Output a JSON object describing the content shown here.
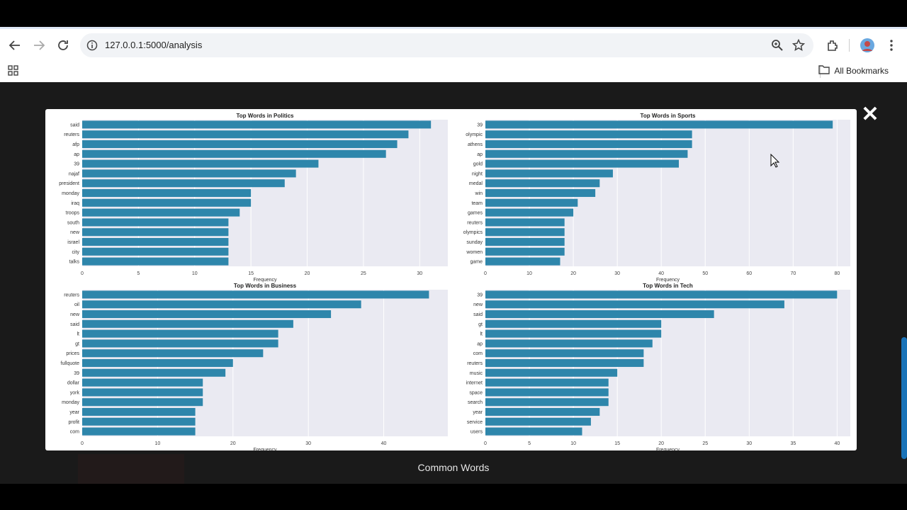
{
  "browser": {
    "url": "127.0.0.1:5000/analysis",
    "bookmarks_label": "All Bookmarks",
    "icons": [
      "back-arrow-icon",
      "forward-arrow-icon",
      "reload-icon",
      "site-info-icon",
      "zoom-icon",
      "star-icon",
      "extensions-icon",
      "avatar",
      "menu-dots-icon",
      "apps-grid-icon",
      "folder-icon"
    ]
  },
  "modal": {
    "close_label": "✕",
    "caption": "Common Words"
  },
  "chart_data": [
    {
      "type": "bar",
      "orientation": "horizontal",
      "title": "Top Words in Politics",
      "xlabel": "Frequency",
      "categories": [
        "said",
        "reuters",
        "afp",
        "ap",
        "39",
        "najaf",
        "president",
        "monday",
        "iraq",
        "troops",
        "south",
        "new",
        "israel",
        "city",
        "talks"
      ],
      "values": [
        31,
        29,
        28,
        27,
        21,
        19,
        18,
        15,
        15,
        14,
        13,
        13,
        13,
        13,
        13
      ],
      "xticks": [
        0,
        5,
        10,
        15,
        20,
        25,
        30
      ],
      "xlim": [
        0,
        32.5
      ],
      "color": "#2e86ab"
    },
    {
      "type": "bar",
      "orientation": "horizontal",
      "title": "Top Words in Sports",
      "xlabel": "Frequency",
      "categories": [
        "39",
        "olympic",
        "athens",
        "ap",
        "gold",
        "night",
        "medal",
        "win",
        "team",
        "games",
        "reuters",
        "olympics",
        "sunday",
        "women",
        "game"
      ],
      "values": [
        79,
        47,
        47,
        46,
        44,
        29,
        26,
        25,
        21,
        20,
        18,
        18,
        18,
        18,
        17
      ],
      "xticks": [
        0,
        10,
        20,
        30,
        40,
        50,
        60,
        70,
        80
      ],
      "xlim": [
        0,
        83
      ],
      "color": "#2e86ab"
    },
    {
      "type": "bar",
      "orientation": "horizontal",
      "title": "Top Words in Business",
      "xlabel": "Frequency",
      "categories": [
        "reuters",
        "oil",
        "new",
        "said",
        "lt",
        "gt",
        "prices",
        "fullquote",
        "39",
        "dollar",
        "york",
        "monday",
        "year",
        "profit",
        "com"
      ],
      "values": [
        46,
        37,
        33,
        28,
        26,
        26,
        24,
        20,
        19,
        16,
        16,
        16,
        15,
        15,
        15
      ],
      "xticks": [
        0,
        10,
        20,
        30,
        40
      ],
      "xlim": [
        0,
        48.5
      ],
      "color": "#2e86ab"
    },
    {
      "type": "bar",
      "orientation": "horizontal",
      "title": "Top Words in Tech",
      "xlabel": "Frequency",
      "categories": [
        "39",
        "new",
        "said",
        "gt",
        "lt",
        "ap",
        "com",
        "reuters",
        "music",
        "internet",
        "space",
        "search",
        "year",
        "service",
        "users"
      ],
      "values": [
        40,
        34,
        26,
        20,
        20,
        19,
        18,
        18,
        15,
        14,
        14,
        14,
        13,
        12,
        11
      ],
      "xticks": [
        0,
        5,
        10,
        15,
        20,
        25,
        30,
        35,
        40
      ],
      "xlim": [
        0,
        41.5
      ],
      "color": "#2e86ab"
    }
  ]
}
